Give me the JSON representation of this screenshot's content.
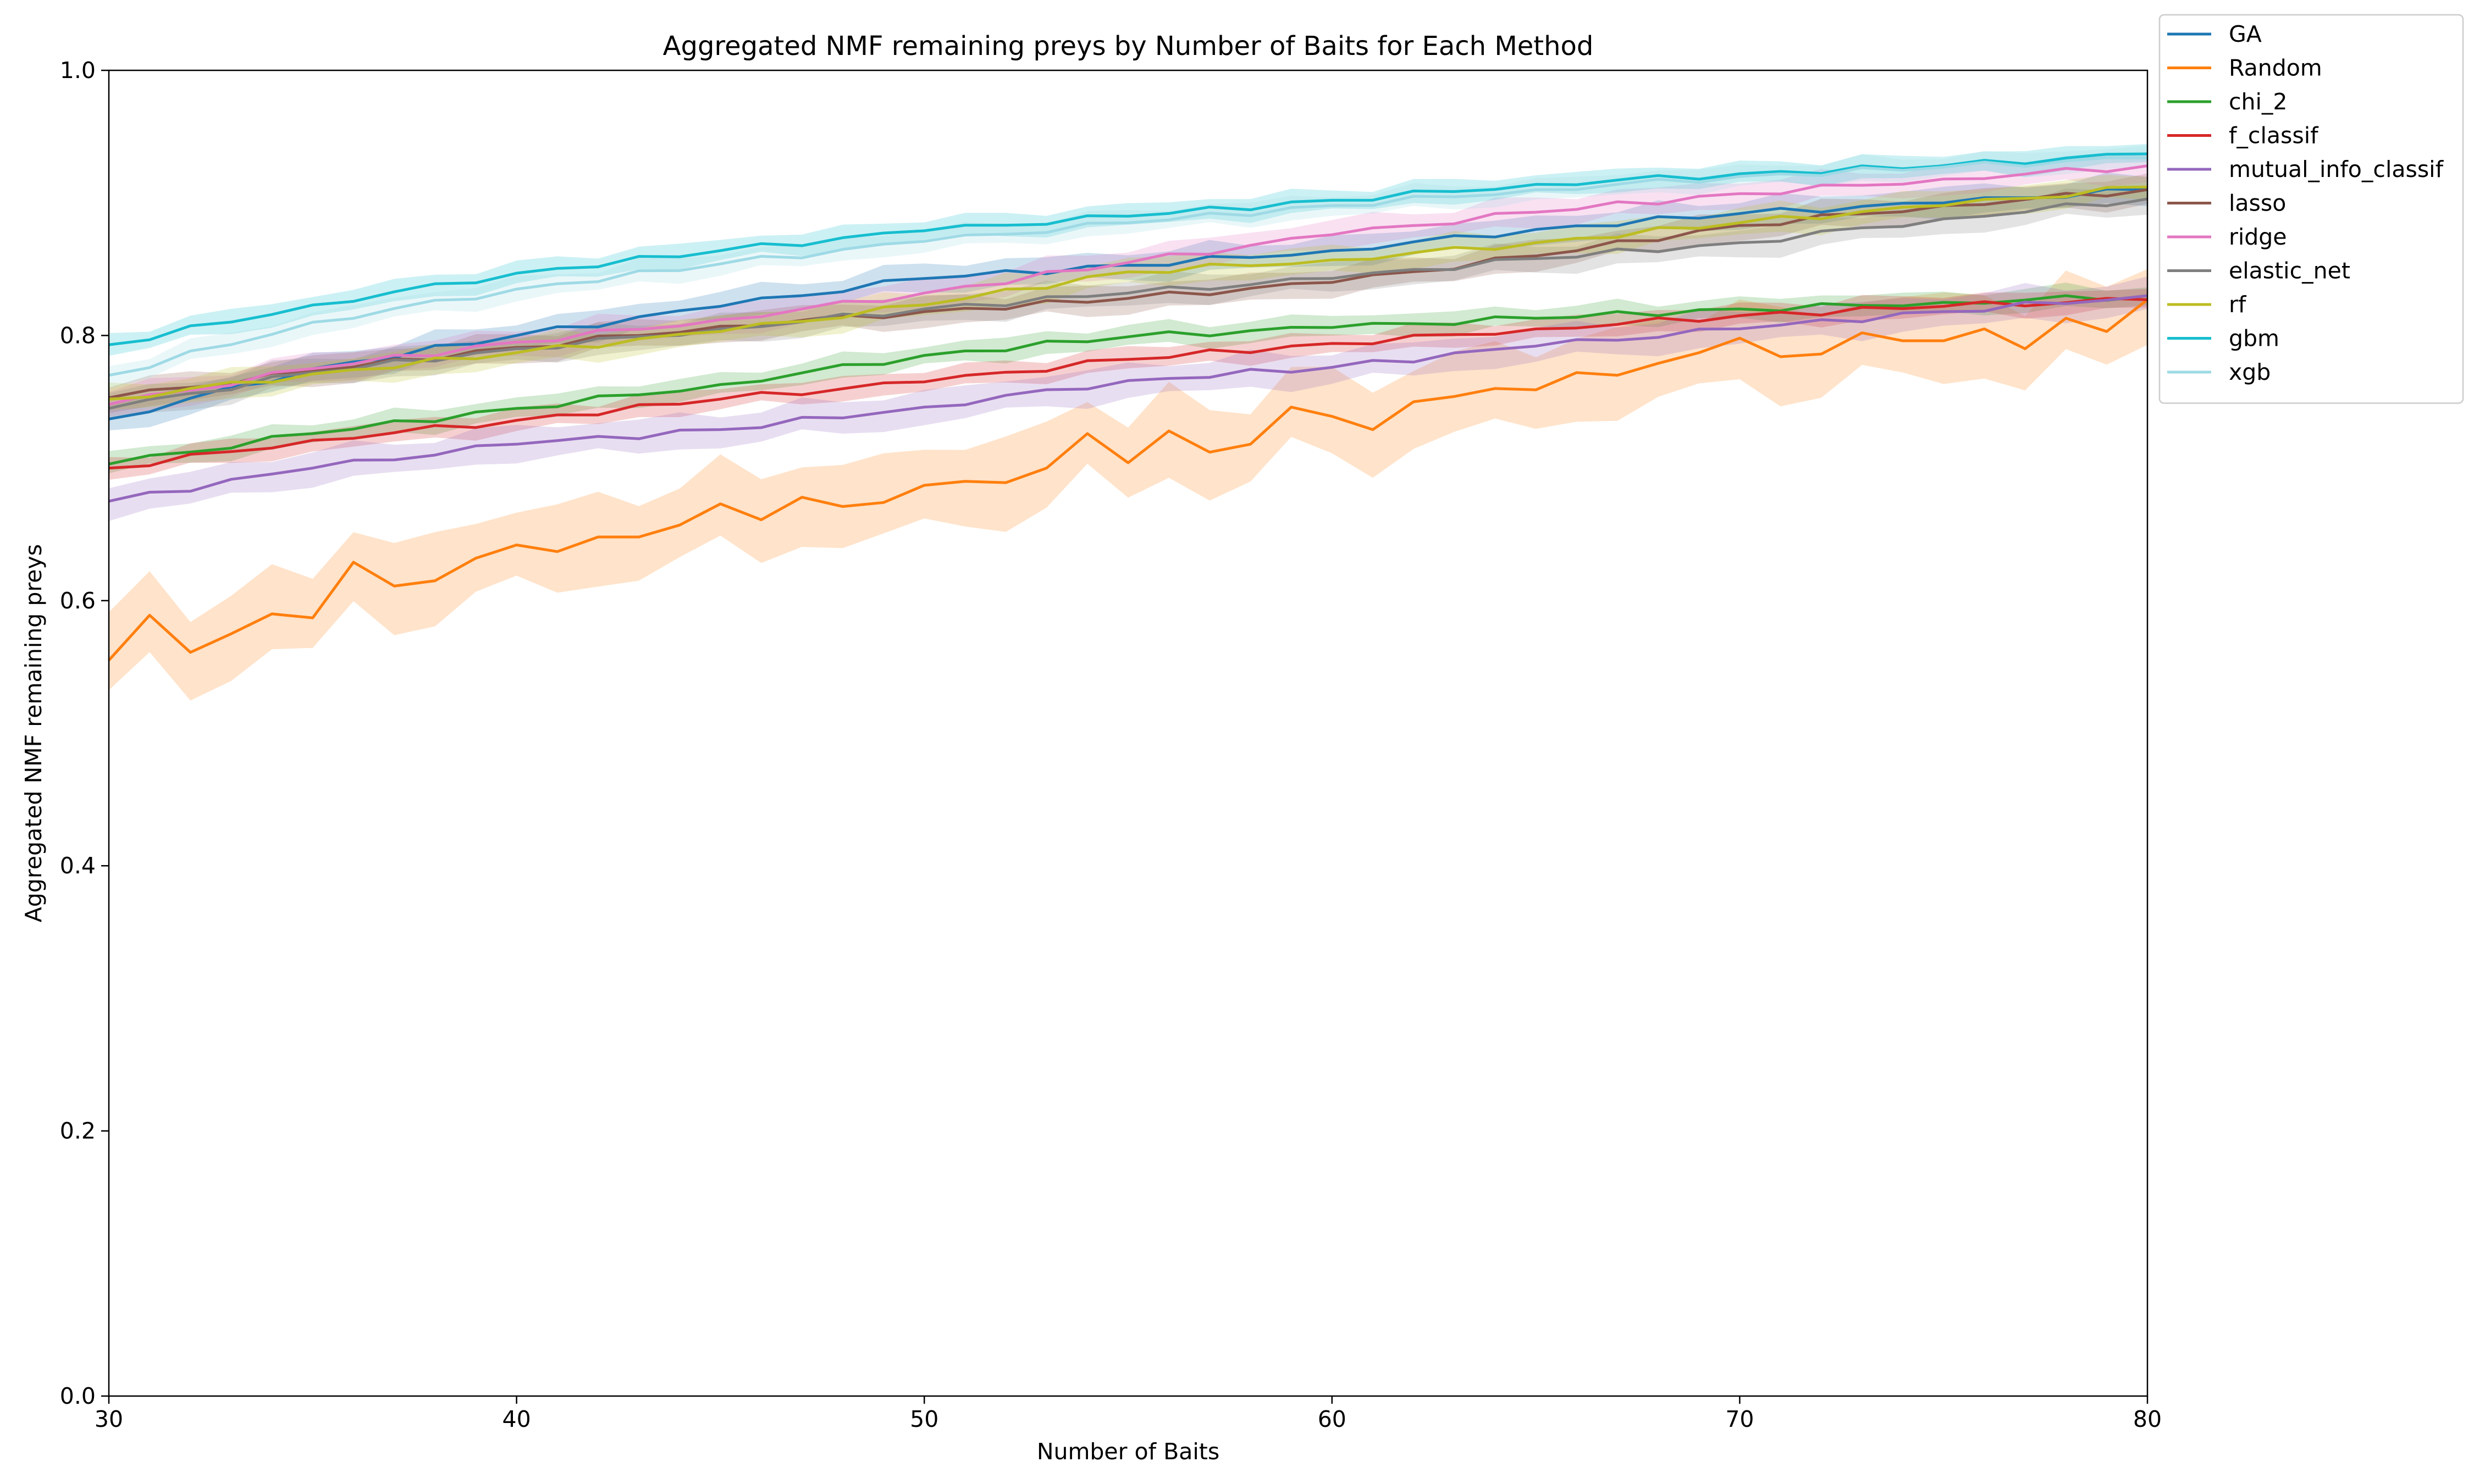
{
  "chart_data": {
    "type": "line",
    "title": "Aggregated NMF remaining preys by Number of Baits for Each Method",
    "xlabel": "Number of Baits",
    "ylabel": "Aggregated NMF remaining preys",
    "xlim": [
      30,
      80
    ],
    "ylim": [
      0.0,
      1.0
    ],
    "xticks": [
      "30",
      "40",
      "50",
      "60",
      "70",
      "80"
    ],
    "yticks": [
      "0.0",
      "0.2",
      "0.4",
      "0.6",
      "0.8",
      "1.0"
    ],
    "grid": false,
    "legend_position": "outside top-right",
    "x": [
      30,
      35,
      40,
      45,
      50,
      55,
      60,
      65,
      70,
      75,
      80
    ],
    "series": [
      {
        "name": "GA",
        "color": "#1f77b4",
        "values": [
          0.737,
          0.775,
          0.8,
          0.822,
          0.843,
          0.853,
          0.864,
          0.88,
          0.892,
          0.9,
          0.91
        ],
        "band": 0.01
      },
      {
        "name": "Random",
        "color": "#ff7f0e",
        "values": [
          0.555,
          0.588,
          0.641,
          0.673,
          0.687,
          0.704,
          0.738,
          0.76,
          0.798,
          0.796,
          0.827
        ],
        "band": 0.03,
        "detail_x": [
          30,
          31,
          32,
          33,
          34,
          35,
          36,
          37,
          38,
          39,
          40,
          41,
          42,
          43,
          44,
          45,
          46,
          47,
          48,
          49,
          50,
          51,
          52,
          53,
          54,
          55,
          56,
          57,
          58,
          59,
          60,
          61,
          62,
          63,
          64,
          65,
          66,
          67,
          68,
          69,
          70,
          71,
          72,
          73,
          74,
          75,
          76,
          77,
          78,
          79,
          80
        ],
        "detail_values": [
          0.555,
          0.589,
          0.561,
          0.575,
          0.59,
          0.587,
          0.629,
          0.611,
          0.615,
          0.632,
          0.642,
          0.637,
          0.648,
          0.648,
          0.657,
          0.673,
          0.661,
          0.678,
          0.671,
          0.674,
          0.687,
          0.69,
          0.689,
          0.7,
          0.726,
          0.704,
          0.728,
          0.712,
          0.718,
          0.746,
          0.739,
          0.729,
          0.75,
          0.754,
          0.76,
          0.759,
          0.772,
          0.77,
          0.779,
          0.787,
          0.798,
          0.784,
          0.786,
          0.802,
          0.796,
          0.796,
          0.805,
          0.79,
          0.813,
          0.803,
          0.827
        ]
      },
      {
        "name": "chi_2",
        "color": "#2ca02c",
        "values": [
          0.703,
          0.726,
          0.745,
          0.763,
          0.785,
          0.799,
          0.806,
          0.813,
          0.82,
          0.825,
          0.83
        ],
        "band": 0.008
      },
      {
        "name": "f_classif",
        "color": "#d62728",
        "values": [
          0.7,
          0.721,
          0.736,
          0.752,
          0.765,
          0.782,
          0.794,
          0.805,
          0.815,
          0.822,
          0.827
        ],
        "band": 0.008
      },
      {
        "name": "mutual_info_classif",
        "color": "#9467bd",
        "values": [
          0.675,
          0.7,
          0.718,
          0.729,
          0.746,
          0.766,
          0.776,
          0.792,
          0.805,
          0.818,
          0.83
        ],
        "band": 0.012
      },
      {
        "name": "lasso",
        "color": "#8c564b",
        "values": [
          0.753,
          0.773,
          0.791,
          0.807,
          0.818,
          0.828,
          0.84,
          0.86,
          0.883,
          0.898,
          0.91
        ],
        "band": 0.01
      },
      {
        "name": "ridge",
        "color": "#e377c2",
        "values": [
          0.748,
          0.775,
          0.795,
          0.812,
          0.832,
          0.855,
          0.876,
          0.893,
          0.907,
          0.918,
          0.928
        ],
        "band": 0.01
      },
      {
        "name": "elastic_net",
        "color": "#7f7f7f",
        "values": [
          0.745,
          0.772,
          0.79,
          0.805,
          0.82,
          0.832,
          0.843,
          0.858,
          0.87,
          0.888,
          0.903
        ],
        "band": 0.01
      },
      {
        "name": "rf",
        "color": "#bcbd22",
        "values": [
          0.752,
          0.771,
          0.787,
          0.803,
          0.823,
          0.848,
          0.857,
          0.87,
          0.885,
          0.898,
          0.912
        ],
        "band": 0.01
      },
      {
        "name": "gbm",
        "color": "#17becf",
        "values": [
          0.793,
          0.823,
          0.847,
          0.864,
          0.879,
          0.89,
          0.902,
          0.914,
          0.922,
          0.928,
          0.937
        ],
        "band": 0.008
      },
      {
        "name": "xgb",
        "color": "#9edae5",
        "values": [
          0.77,
          0.81,
          0.835,
          0.854,
          0.871,
          0.885,
          0.898,
          0.91,
          0.92,
          0.927,
          0.934
        ],
        "band": 0.008
      }
    ]
  }
}
